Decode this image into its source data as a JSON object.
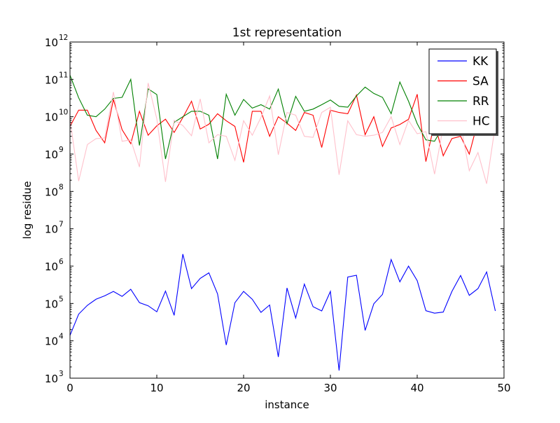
{
  "chart_data": {
    "type": "line",
    "title": "1st representation",
    "xlabel": "instance",
    "ylabel": "log residue",
    "xlim": [
      0,
      50
    ],
    "ylim": [
      1000,
      1000000000000
    ],
    "yscale": "log",
    "grid": false,
    "legend_position": "top-right",
    "x_ticks": [
      "0",
      "10",
      "20",
      "30",
      "40",
      "50"
    ],
    "y_ticks": [
      {
        "base": "10",
        "exp": "3"
      },
      {
        "base": "10",
        "exp": "4"
      },
      {
        "base": "10",
        "exp": "5"
      },
      {
        "base": "10",
        "exp": "6"
      },
      {
        "base": "10",
        "exp": "7"
      },
      {
        "base": "10",
        "exp": "8"
      },
      {
        "base": "10",
        "exp": "9"
      },
      {
        "base": "10",
        "exp": "10"
      },
      {
        "base": "10",
        "exp": "11"
      },
      {
        "base": "10",
        "exp": "12"
      }
    ],
    "x": [
      0,
      1,
      2,
      3,
      4,
      5,
      6,
      7,
      8,
      9,
      10,
      11,
      12,
      13,
      14,
      15,
      16,
      17,
      18,
      19,
      20,
      21,
      22,
      23,
      24,
      25,
      26,
      27,
      28,
      29,
      30,
      31,
      32,
      33,
      34,
      35,
      36,
      37,
      38,
      39,
      40,
      41,
      42,
      43,
      44,
      45,
      46,
      47,
      48,
      49
    ],
    "series": [
      {
        "name": "KK",
        "color": "#0000ff",
        "values": [
          14000,
          52000,
          89000,
          130000,
          160000,
          210000,
          155000,
          240000,
          105000,
          87000,
          60000,
          215000,
          48000,
          2100000,
          250000,
          470000,
          660000,
          180000,
          7700,
          105000,
          210000,
          130000,
          58000,
          91000,
          3700,
          260000,
          41000,
          330000,
          82000,
          63000,
          210000,
          1600,
          510000,
          570000,
          19000,
          98000,
          175000,
          1500000,
          380000,
          1000000,
          410000,
          64000,
          55000,
          59000,
          210000,
          560000,
          165000,
          250000,
          700000,
          63000
        ]
      },
      {
        "name": "SA",
        "color": "#ff0000",
        "values": [
          5500000000,
          15000000000,
          15000000000,
          4300000000,
          2000000000,
          29000000000,
          4500000000,
          1900000000,
          14000000000,
          3200000000,
          5700000000,
          8600000000,
          3800000000,
          9500000000,
          26000000000,
          4700000000,
          6300000000,
          12000000000,
          7800000000,
          5500000000,
          600000000,
          14000000000,
          14000000000,
          3000000000,
          10000000000,
          6700000000,
          4300000000,
          13000000000,
          11000000000,
          1500000000,
          15000000000,
          13000000000,
          12000000000,
          38000000000,
          3300000000,
          10000000000,
          1600000000,
          5000000000,
          6200000000,
          8500000000,
          40000000000,
          630000000,
          6900000000,
          900000000,
          2600000000,
          3000000000,
          1000000000,
          7600000000,
          3300000000,
          6000000000
        ]
      },
      {
        "name": "RR",
        "color": "#008000",
        "values": [
          130000000000,
          32000000000,
          11000000000,
          10000000000,
          16000000000,
          31000000000,
          33000000000,
          100000000000,
          1700000000,
          56000000000,
          39000000000,
          740000000,
          7100000000,
          10000000000,
          14000000000,
          14000000000,
          11000000000,
          740000000,
          40000000000,
          11000000000,
          29000000000,
          17000000000,
          21000000000,
          16000000000,
          55000000000,
          6500000000,
          35000000000,
          14000000000,
          16000000000,
          21000000000,
          28000000000,
          19000000000,
          18000000000,
          36000000000,
          62000000000,
          42000000000,
          33000000000,
          12000000000,
          85000000000,
          26000000000,
          6500000000,
          2400000000,
          2200000000,
          5500000000,
          8000000000,
          15000000000,
          10000000000,
          9000000000,
          6000000000,
          6000000000
        ]
      },
      {
        "name": "HC",
        "color": "#ffc0cb",
        "values": [
          8500000000,
          190000000,
          1800000000,
          2600000000,
          2700000000,
          46000000000,
          2200000000,
          2400000000,
          450000000,
          80000000000,
          8800000000,
          180000000,
          8000000000,
          5800000000,
          3100000000,
          30000000000,
          2000000000,
          3300000000,
          3000000000,
          680000000,
          7800000000,
          3200000000,
          9600000000,
          36000000000,
          960000000,
          13000000000,
          11000000000,
          3000000000,
          2800000000,
          13000000000,
          18000000000,
          280000000,
          7800000000,
          3300000000,
          3000000000,
          3200000000,
          3800000000,
          10000000000,
          1800000000,
          8000000000,
          3500000000,
          4000000000,
          290000000,
          5500000000,
          4800000000,
          6300000000,
          360000000,
          1100000000,
          160000000,
          6000000000
        ]
      }
    ]
  }
}
